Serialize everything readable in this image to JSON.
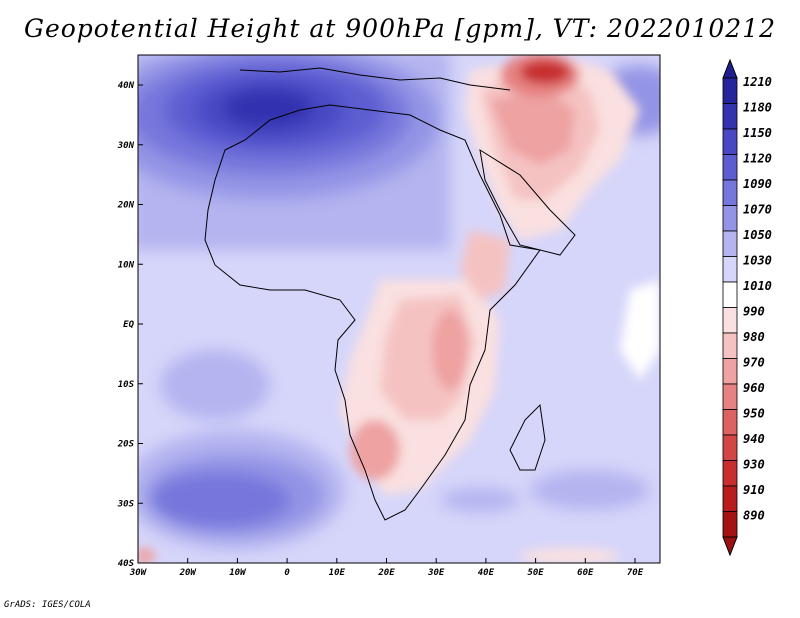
{
  "title": "Geopotential Height at 900hPa [gpm], VT: 2022010212",
  "footer": "GrADS: IGES/COLA",
  "map": {
    "lon_range": [
      -30,
      75
    ],
    "lat_range": [
      -40,
      45
    ],
    "lat_ticks": [
      "40N",
      "30N",
      "20N",
      "10N",
      "EQ",
      "10S",
      "20S",
      "30S",
      "40S"
    ],
    "lon_ticks": [
      "30W",
      "20W",
      "10W",
      "0",
      "10E",
      "20E",
      "30E",
      "40E",
      "50E",
      "60E",
      "70E"
    ]
  },
  "colorbar": {
    "levels": [
      "1210",
      "1180",
      "1150",
      "1120",
      "1090",
      "1070",
      "1050",
      "1030",
      "1010",
      "990",
      "980",
      "970",
      "960",
      "950",
      "940",
      "930",
      "910",
      "890"
    ],
    "colors": [
      "#24249c",
      "#3333b0",
      "#4848c4",
      "#5d5dd2",
      "#7676dc",
      "#9494e6",
      "#b4b4f0",
      "#d6d6fa",
      "#ffffff",
      "#fae0e0",
      "#f5c2c2",
      "#eea2a2",
      "#e68282",
      "#dd6262",
      "#d34646",
      "#c82e2e",
      "#b81c1c",
      "#a51212"
    ],
    "top_arrow_color": "#1e1e90",
    "bottom_arrow_color": "#9a1010"
  }
}
